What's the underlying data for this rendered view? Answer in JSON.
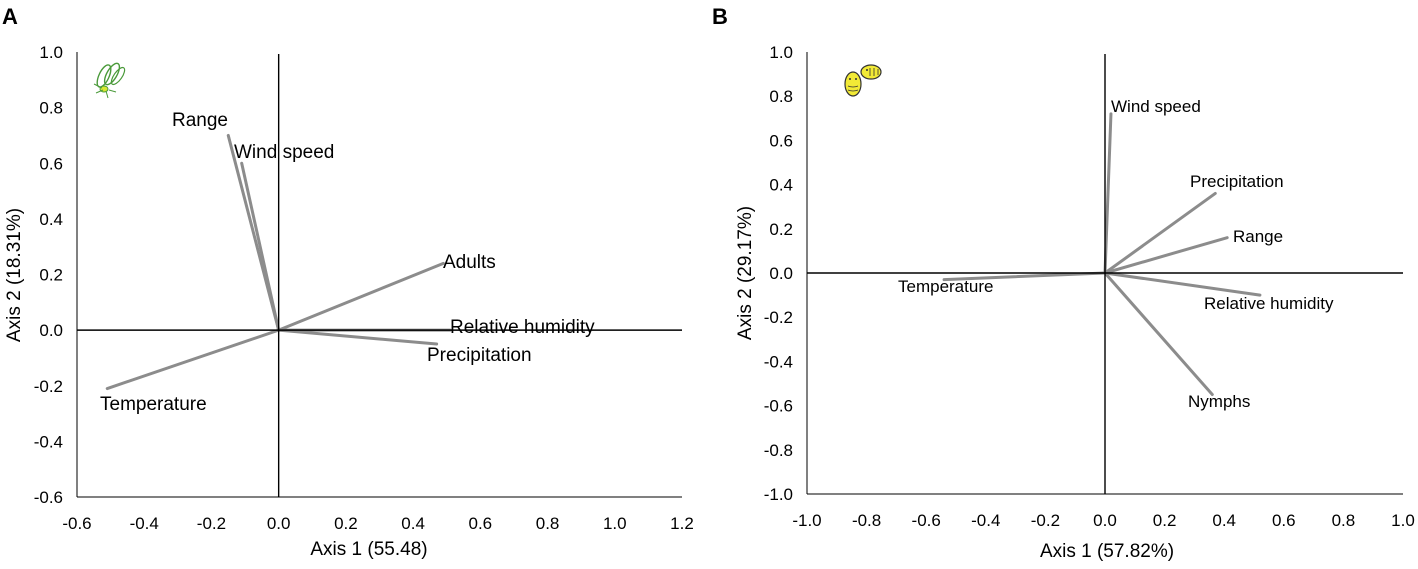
{
  "chart_data": [
    {
      "type": "scatter",
      "subtype": "biplot",
      "panel_label": "A",
      "xlabel": "Axis 1 (55.48)",
      "ylabel": "Axis 2 (18.31%)",
      "xlim": [
        -0.6,
        1.2
      ],
      "ylim": [
        -0.6,
        1.0
      ],
      "xticks": [
        "-0.6",
        "-0.4",
        "-0.2",
        "0.0",
        "0.2",
        "0.4",
        "0.6",
        "0.8",
        "1.0",
        "1.2"
      ],
      "yticks": [
        "1.0",
        "0.8",
        "0.6",
        "0.4",
        "0.2",
        "0.0",
        "-0.2",
        "-0.4",
        "-0.6"
      ],
      "icon": "whitefly-adult-icon",
      "vectors": [
        {
          "name": "Range",
          "x": -0.15,
          "y": 0.7
        },
        {
          "name": "Wind speed",
          "x": -0.11,
          "y": 0.6
        },
        {
          "name": "Adults",
          "x": 0.49,
          "y": 0.24
        },
        {
          "name": "Relative humidity",
          "x": 0.51,
          "y": 0.0
        },
        {
          "name": "Precipitation",
          "x": 0.47,
          "y": -0.05
        },
        {
          "name": "Temperature",
          "x": -0.51,
          "y": -0.21
        }
      ]
    },
    {
      "type": "scatter",
      "subtype": "biplot",
      "panel_label": "B",
      "xlabel": "Axis 1 (57.82%)",
      "ylabel": "Axis 2 (29.17%)",
      "xlim": [
        -1.0,
        1.0
      ],
      "ylim": [
        -1.0,
        1.0
      ],
      "xticks": [
        "-1.0",
        "-0.8",
        "-0.6",
        "-0.4",
        "-0.2",
        "0.0",
        "0.2",
        "0.4",
        "0.6",
        "0.8",
        "1.0"
      ],
      "yticks": [
        "1.0",
        "0.8",
        "0.6",
        "0.4",
        "0.2",
        "0.0",
        "-0.2",
        "-0.4",
        "-0.6",
        "-0.8",
        "-1.0"
      ],
      "icon": "whitefly-nymph-icon",
      "vectors": [
        {
          "name": "Wind speed",
          "x": 0.02,
          "y": 0.72
        },
        {
          "name": "Precipitation",
          "x": 0.37,
          "y": 0.36
        },
        {
          "name": "Range",
          "x": 0.41,
          "y": 0.16
        },
        {
          "name": "Temperature",
          "x": -0.54,
          "y": -0.03
        },
        {
          "name": "Relative humidity",
          "x": 0.52,
          "y": -0.1
        },
        {
          "name": "Nymphs",
          "x": 0.36,
          "y": -0.55
        }
      ]
    }
  ]
}
